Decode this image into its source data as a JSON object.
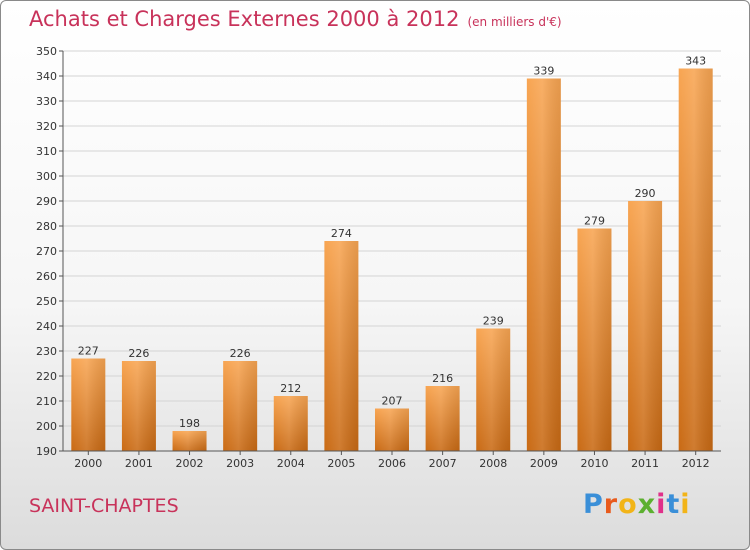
{
  "header": {
    "title": "Achats et Charges Externes 2000 à 2012",
    "unit": "(en milliers d'€)"
  },
  "footer": {
    "place": "SAINT-CHAPTES",
    "logo": "Proxiti"
  },
  "chart_data": {
    "type": "bar",
    "title": "Achats et Charges Externes 2000 à 2012",
    "subtitle": "(en milliers d'€)",
    "categories": [
      "2000",
      "2001",
      "2002",
      "2003",
      "2004",
      "2005",
      "2006",
      "2007",
      "2008",
      "2009",
      "2010",
      "2011",
      "2012"
    ],
    "values": [
      227,
      226,
      198,
      226,
      212,
      274,
      207,
      216,
      239,
      339,
      279,
      290,
      343
    ],
    "ylim": [
      190,
      350
    ],
    "yticks": [
      190,
      200,
      210,
      220,
      230,
      240,
      250,
      260,
      270,
      280,
      290,
      300,
      310,
      320,
      330,
      340,
      350
    ],
    "grid": true,
    "bar_color_top": "#f8a552",
    "bar_color_bottom": "#c96a14"
  }
}
